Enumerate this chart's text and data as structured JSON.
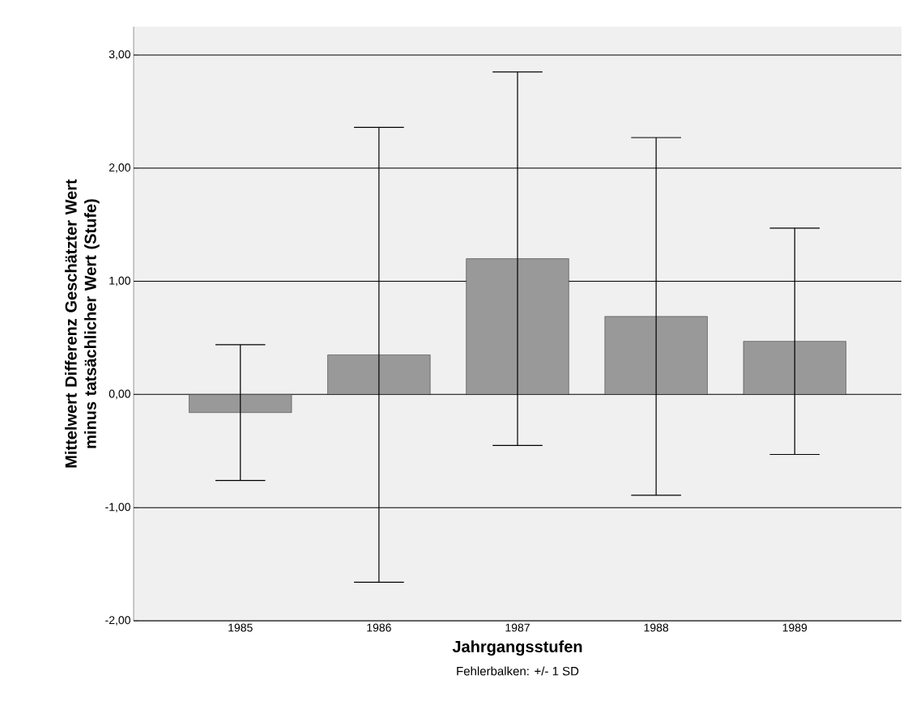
{
  "chart_data": {
    "type": "bar",
    "categories": [
      "1985",
      "1986",
      "1987",
      "1988",
      "1989"
    ],
    "values": [
      -0.16,
      0.35,
      1.2,
      0.69,
      0.47
    ],
    "errors": [
      0.6,
      2.01,
      1.65,
      1.58,
      1.0
    ],
    "color": "#999999",
    "xlabel": "Jahrgangsstufen",
    "ylabel": "Mittelwert Differenz Geschätzter Wert minus tatsächlicher Wert (Stufe)",
    "ylim": [
      -2,
      3.25
    ],
    "yticks": [
      {
        "value": -2,
        "label": "-2,00"
      },
      {
        "value": -1,
        "label": "-1,00"
      },
      {
        "value": 0,
        "label": "0,00"
      },
      {
        "value": 1,
        "label": "1,00"
      },
      {
        "value": 2,
        "label": "2,00"
      },
      {
        "value": 3,
        "label": "3,00"
      }
    ],
    "grid": "y",
    "annotations": [
      "Fehlerbalken: +/- 1 SD"
    ]
  }
}
